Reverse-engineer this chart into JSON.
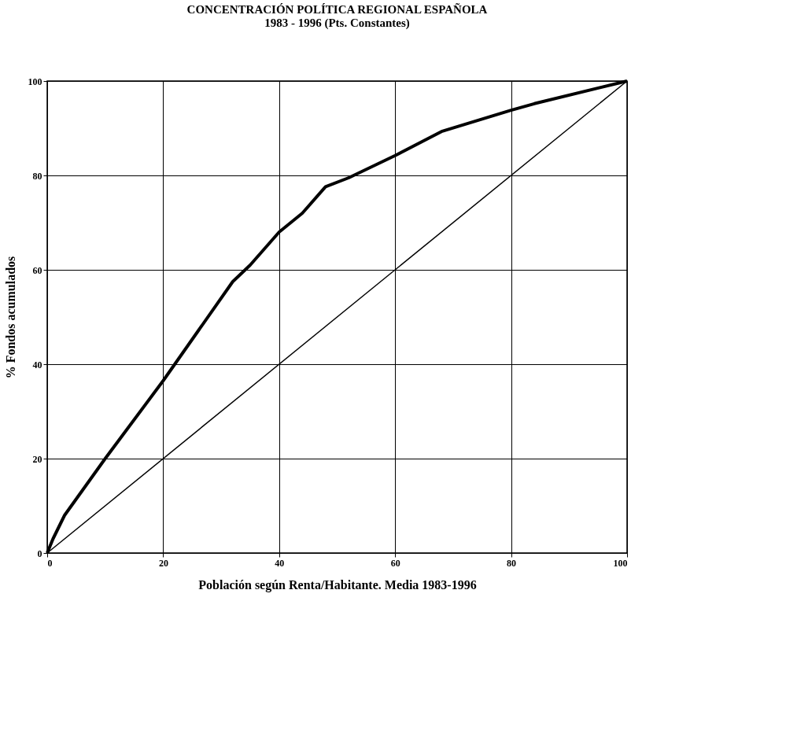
{
  "chart_data": {
    "type": "line",
    "title": "CONCENTRACIÓN  POLÍTICA REGIONAL ESPAÑOLA\n1983 - 1996 (Pts. Constantes)",
    "xlabel": "Población según Renta/Habitante. Media 1983-1996",
    "ylabel": "% Fondos acumulados",
    "series": [
      {
        "color": "#000000",
        "x": [
          0,
          1,
          3,
          10,
          20,
          26,
          32,
          35,
          40,
          44,
          48,
          52,
          60,
          68,
          80,
          84,
          100
        ],
        "values": [
          0,
          3,
          8,
          20,
          36.5,
          47,
          57.5,
          61,
          68,
          72,
          77.6,
          79.5,
          84.2,
          89.3,
          93.8,
          95.2,
          100
        ]
      },
      {
        "color": "#000000",
        "x": [
          0,
          100
        ],
        "values": [
          0,
          100
        ]
      }
    ],
    "xlim": [
      0,
      100
    ],
    "ylim": [
      0,
      100
    ],
    "xticks": [
      0,
      20,
      40,
      60,
      80,
      100
    ],
    "yticks": [
      0,
      20,
      40,
      60,
      80,
      100
    ],
    "grid": true,
    "marker": "none",
    "line_style": "solid"
  }
}
